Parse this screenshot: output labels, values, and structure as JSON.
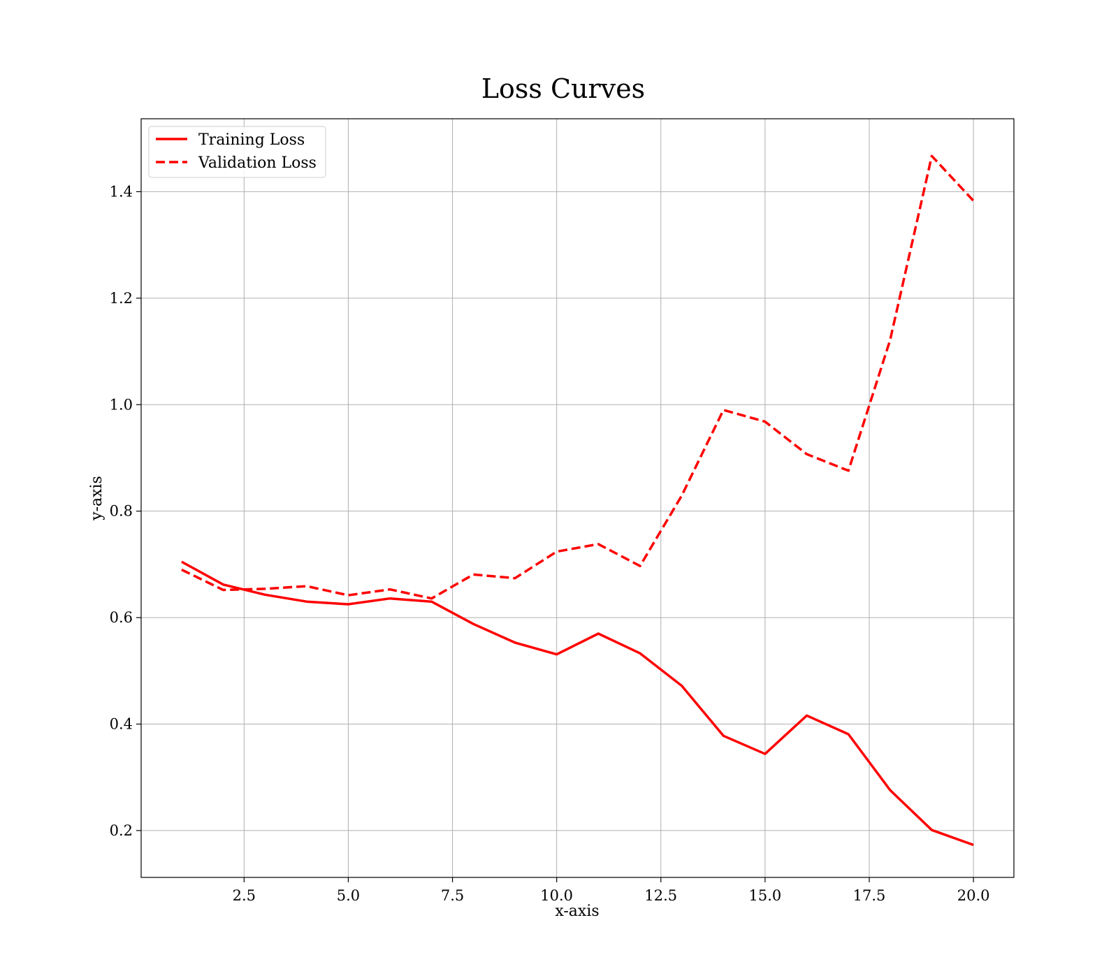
{
  "chart_data": {
    "type": "line",
    "title": "Loss Curves",
    "xlabel": "x-axis",
    "ylabel": "y-axis",
    "xlim": [
      0.03,
      20.97
    ],
    "ylim": [
      0.112,
      1.537
    ],
    "xticks": [
      2.5,
      5.0,
      7.5,
      10.0,
      12.5,
      15.0,
      17.5,
      20.0
    ],
    "xtick_labels": [
      "2.5",
      "5.0",
      "7.5",
      "10.0",
      "12.5",
      "15.0",
      "17.5",
      "20.0"
    ],
    "yticks": [
      0.2,
      0.4,
      0.6,
      0.8,
      1.0,
      1.2,
      1.4
    ],
    "ytick_labels": [
      "0.2",
      "0.4",
      "0.6",
      "0.8",
      "1.0",
      "1.2",
      "1.4"
    ],
    "grid": true,
    "legend_position": "upper-left",
    "x": [
      1,
      2,
      3,
      4,
      5,
      6,
      7,
      8,
      9,
      10,
      11,
      12,
      13,
      14,
      15,
      16,
      17,
      18,
      19,
      20
    ],
    "series": [
      {
        "name": "Training Loss",
        "style": "solid",
        "color": "#ff0000",
        "values": [
          0.705,
          0.662,
          0.643,
          0.63,
          0.625,
          0.636,
          0.63,
          0.588,
          0.553,
          0.531,
          0.57,
          0.533,
          0.472,
          0.378,
          0.344,
          0.416,
          0.381,
          0.276,
          0.201,
          0.173
        ]
      },
      {
        "name": "Validation Loss",
        "style": "dashed",
        "color": "#ff0000",
        "values": [
          0.69,
          0.652,
          0.654,
          0.659,
          0.642,
          0.653,
          0.636,
          0.681,
          0.674,
          0.724,
          0.738,
          0.697,
          0.829,
          0.99,
          0.968,
          0.907,
          0.876,
          1.121,
          1.467,
          1.383
        ]
      }
    ]
  }
}
